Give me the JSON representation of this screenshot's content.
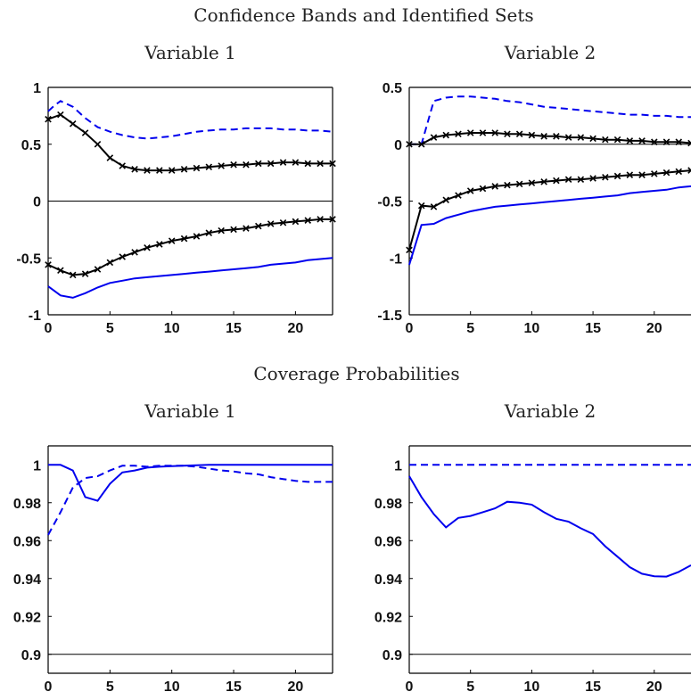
{
  "figure": {
    "top_title": "Confidence Bands and Identified Sets",
    "bottom_title": "Coverage Probabilities"
  },
  "colors": {
    "band": "#0000ee",
    "estimate": "#000000",
    "axis": "#000000"
  },
  "chart_data": [
    {
      "type": "line",
      "title": "Variable 1",
      "xlim": [
        0,
        23
      ],
      "ylim": [
        -1,
        1
      ],
      "xticks": [
        0,
        5,
        10,
        15,
        20
      ],
      "yticks": [
        -1,
        -0.5,
        0,
        0.5,
        1
      ],
      "ytick_labels": [
        "-1",
        "-0.5",
        "0",
        "0.5",
        "1"
      ],
      "hline": 0,
      "series": [
        {
          "style": "blue-dashed",
          "x": [
            0,
            0.5,
            1,
            2,
            3,
            4,
            5,
            6,
            7,
            8,
            9,
            10,
            11,
            12,
            13,
            14,
            15,
            16,
            17,
            18,
            19,
            20,
            21,
            22,
            23
          ],
          "values": [
            0.79,
            0.84,
            0.88,
            0.83,
            0.73,
            0.65,
            0.61,
            0.58,
            0.56,
            0.55,
            0.56,
            0.57,
            0.59,
            0.61,
            0.62,
            0.63,
            0.63,
            0.64,
            0.64,
            0.64,
            0.63,
            0.63,
            0.62,
            0.62,
            0.61
          ]
        },
        {
          "style": "black-x",
          "x": [
            0,
            1,
            2,
            3,
            4,
            5,
            6,
            7,
            8,
            9,
            10,
            11,
            12,
            13,
            14,
            15,
            16,
            17,
            18,
            19,
            20,
            21,
            22,
            23
          ],
          "values": [
            0.72,
            0.76,
            0.68,
            0.6,
            0.5,
            0.38,
            0.31,
            0.28,
            0.27,
            0.27,
            0.27,
            0.28,
            0.29,
            0.3,
            0.31,
            0.32,
            0.32,
            0.33,
            0.33,
            0.34,
            0.34,
            0.33,
            0.33,
            0.33
          ]
        },
        {
          "style": "black-x",
          "x": [
            0,
            1,
            2,
            3,
            4,
            5,
            6,
            7,
            8,
            9,
            10,
            11,
            12,
            13,
            14,
            15,
            16,
            17,
            18,
            19,
            20,
            21,
            22,
            23
          ],
          "values": [
            -0.56,
            -0.61,
            -0.65,
            -0.64,
            -0.6,
            -0.54,
            -0.49,
            -0.45,
            -0.41,
            -0.38,
            -0.35,
            -0.33,
            -0.31,
            -0.28,
            -0.26,
            -0.25,
            -0.24,
            -0.22,
            -0.2,
            -0.19,
            -0.18,
            -0.17,
            -0.16,
            -0.16
          ]
        },
        {
          "style": "blue-solid",
          "x": [
            0,
            1,
            2,
            3,
            4,
            5,
            6,
            7,
            8,
            9,
            10,
            11,
            12,
            13,
            14,
            15,
            16,
            17,
            18,
            19,
            20,
            21,
            22,
            23
          ],
          "values": [
            -0.75,
            -0.83,
            -0.85,
            -0.81,
            -0.76,
            -0.72,
            -0.7,
            -0.68,
            -0.67,
            -0.66,
            -0.65,
            -0.64,
            -0.63,
            -0.62,
            -0.61,
            -0.6,
            -0.59,
            -0.58,
            -0.56,
            -0.55,
            -0.54,
            -0.52,
            -0.51,
            -0.5
          ]
        }
      ]
    },
    {
      "type": "line",
      "title": "Variable 2",
      "xlim": [
        0,
        23
      ],
      "ylim": [
        -1.5,
        0.5
      ],
      "xticks": [
        0,
        5,
        10,
        15,
        20
      ],
      "yticks": [
        -1.5,
        -1,
        -0.5,
        0,
        0.5
      ],
      "ytick_labels": [
        "-1.5",
        "-1",
        "-0.5",
        "0",
        "0.5"
      ],
      "hline": 0,
      "series": [
        {
          "style": "blue-dashed",
          "x": [
            0,
            1,
            2,
            3,
            4,
            5,
            6,
            7,
            8,
            9,
            10,
            11,
            12,
            13,
            14,
            15,
            16,
            17,
            18,
            19,
            20,
            21,
            22,
            23
          ],
          "values": [
            0.0,
            0.0,
            0.38,
            0.41,
            0.42,
            0.42,
            0.41,
            0.4,
            0.38,
            0.37,
            0.35,
            0.33,
            0.32,
            0.31,
            0.3,
            0.29,
            0.28,
            0.27,
            0.26,
            0.26,
            0.25,
            0.25,
            0.24,
            0.24
          ]
        },
        {
          "style": "black-x",
          "x": [
            0,
            1,
            2,
            3,
            4,
            5,
            6,
            7,
            8,
            9,
            10,
            11,
            12,
            13,
            14,
            15,
            16,
            17,
            18,
            19,
            20,
            21,
            22,
            23
          ],
          "values": [
            0.0,
            0.0,
            0.06,
            0.08,
            0.09,
            0.1,
            0.1,
            0.1,
            0.09,
            0.09,
            0.08,
            0.07,
            0.07,
            0.06,
            0.06,
            0.05,
            0.04,
            0.04,
            0.03,
            0.03,
            0.02,
            0.02,
            0.02,
            0.01
          ]
        },
        {
          "style": "black-x",
          "x": [
            0,
            1,
            2,
            3,
            4,
            5,
            6,
            7,
            8,
            9,
            10,
            11,
            12,
            13,
            14,
            15,
            16,
            17,
            18,
            19,
            20,
            21,
            22,
            23
          ],
          "values": [
            -0.93,
            -0.54,
            -0.55,
            -0.49,
            -0.45,
            -0.41,
            -0.39,
            -0.37,
            -0.36,
            -0.35,
            -0.34,
            -0.33,
            -0.32,
            -0.31,
            -0.31,
            -0.3,
            -0.29,
            -0.28,
            -0.27,
            -0.27,
            -0.26,
            -0.25,
            -0.24,
            -0.23
          ]
        },
        {
          "style": "blue-solid",
          "x": [
            0,
            1,
            2,
            3,
            4,
            5,
            6,
            7,
            8,
            9,
            10,
            11,
            12,
            13,
            14,
            15,
            16,
            17,
            18,
            19,
            20,
            21,
            22,
            23
          ],
          "values": [
            -1.06,
            -0.71,
            -0.7,
            -0.65,
            -0.62,
            -0.59,
            -0.57,
            -0.55,
            -0.54,
            -0.53,
            -0.52,
            -0.51,
            -0.5,
            -0.49,
            -0.48,
            -0.47,
            -0.46,
            -0.45,
            -0.43,
            -0.42,
            -0.41,
            -0.4,
            -0.38,
            -0.37
          ]
        }
      ]
    },
    {
      "type": "line",
      "title": "Variable 1",
      "xlim": [
        0,
        23
      ],
      "ylim": [
        0.89,
        1.01
      ],
      "xticks": [
        0,
        5,
        10,
        15,
        20
      ],
      "yticks": [
        0.9,
        0.92,
        0.94,
        0.96,
        0.98,
        1
      ],
      "ytick_labels": [
        "0.9",
        "0.92",
        "0.94",
        "0.96",
        "0.98",
        "1"
      ],
      "hline": 0.9,
      "series": [
        {
          "style": "blue-solid",
          "x": [
            0,
            1,
            2,
            3,
            4,
            5,
            6,
            7,
            8,
            9,
            10,
            11,
            12,
            13,
            14,
            15,
            16,
            17,
            18,
            19,
            20,
            21,
            22,
            23
          ],
          "values": [
            1.0,
            1.0,
            0.997,
            0.983,
            0.981,
            0.99,
            0.996,
            0.997,
            0.9985,
            0.999,
            0.9993,
            0.9995,
            0.9998,
            1.0,
            1.0,
            1.0,
            1.0,
            1.0,
            1.0,
            1.0,
            1.0,
            1.0,
            1.0,
            1.0
          ]
        },
        {
          "style": "blue-dashed",
          "x": [
            0,
            1,
            2,
            3,
            4,
            5,
            6,
            7,
            8,
            9,
            10,
            11,
            12,
            13,
            14,
            15,
            16,
            17,
            18,
            19,
            20,
            21,
            22,
            23
          ],
          "values": [
            0.963,
            0.975,
            0.988,
            0.993,
            0.994,
            0.997,
            0.9995,
            0.9995,
            0.999,
            0.9995,
            0.9995,
            0.9995,
            0.999,
            0.998,
            0.997,
            0.9965,
            0.9955,
            0.995,
            0.9935,
            0.9925,
            0.9915,
            0.991,
            0.991,
            0.991
          ]
        }
      ]
    },
    {
      "type": "line",
      "title": "Variable 2",
      "xlim": [
        0,
        23
      ],
      "ylim": [
        0.89,
        1.01
      ],
      "xticks": [
        0,
        5,
        10,
        15,
        20
      ],
      "yticks": [
        0.9,
        0.92,
        0.94,
        0.96,
        0.98,
        1
      ],
      "ytick_labels": [
        "0.9",
        "0.92",
        "0.94",
        "0.96",
        "0.98",
        "1"
      ],
      "hline": 0.9,
      "series": [
        {
          "style": "blue-dashed",
          "x": [
            0,
            1,
            2,
            3,
            4,
            5,
            6,
            7,
            8,
            9,
            10,
            11,
            12,
            13,
            14,
            15,
            16,
            17,
            18,
            19,
            20,
            21,
            22,
            23
          ],
          "values": [
            1,
            1,
            1,
            1,
            1,
            1,
            1,
            1,
            1,
            1,
            1,
            1,
            1,
            1,
            1,
            1,
            1,
            1,
            1,
            1,
            1,
            1,
            1,
            1
          ]
        },
        {
          "style": "blue-solid",
          "x": [
            0,
            1,
            2,
            3,
            4,
            5,
            6,
            7,
            8,
            9,
            10,
            11,
            12,
            13,
            14,
            15,
            16,
            17,
            18,
            19,
            20,
            21,
            22,
            23
          ],
          "values": [
            0.994,
            0.983,
            0.974,
            0.967,
            0.972,
            0.973,
            0.975,
            0.977,
            0.9805,
            0.98,
            0.979,
            0.975,
            0.9715,
            0.97,
            0.9665,
            0.9635,
            0.957,
            0.9515,
            0.946,
            0.9425,
            0.9412,
            0.941,
            0.9435,
            0.947
          ]
        }
      ]
    }
  ]
}
